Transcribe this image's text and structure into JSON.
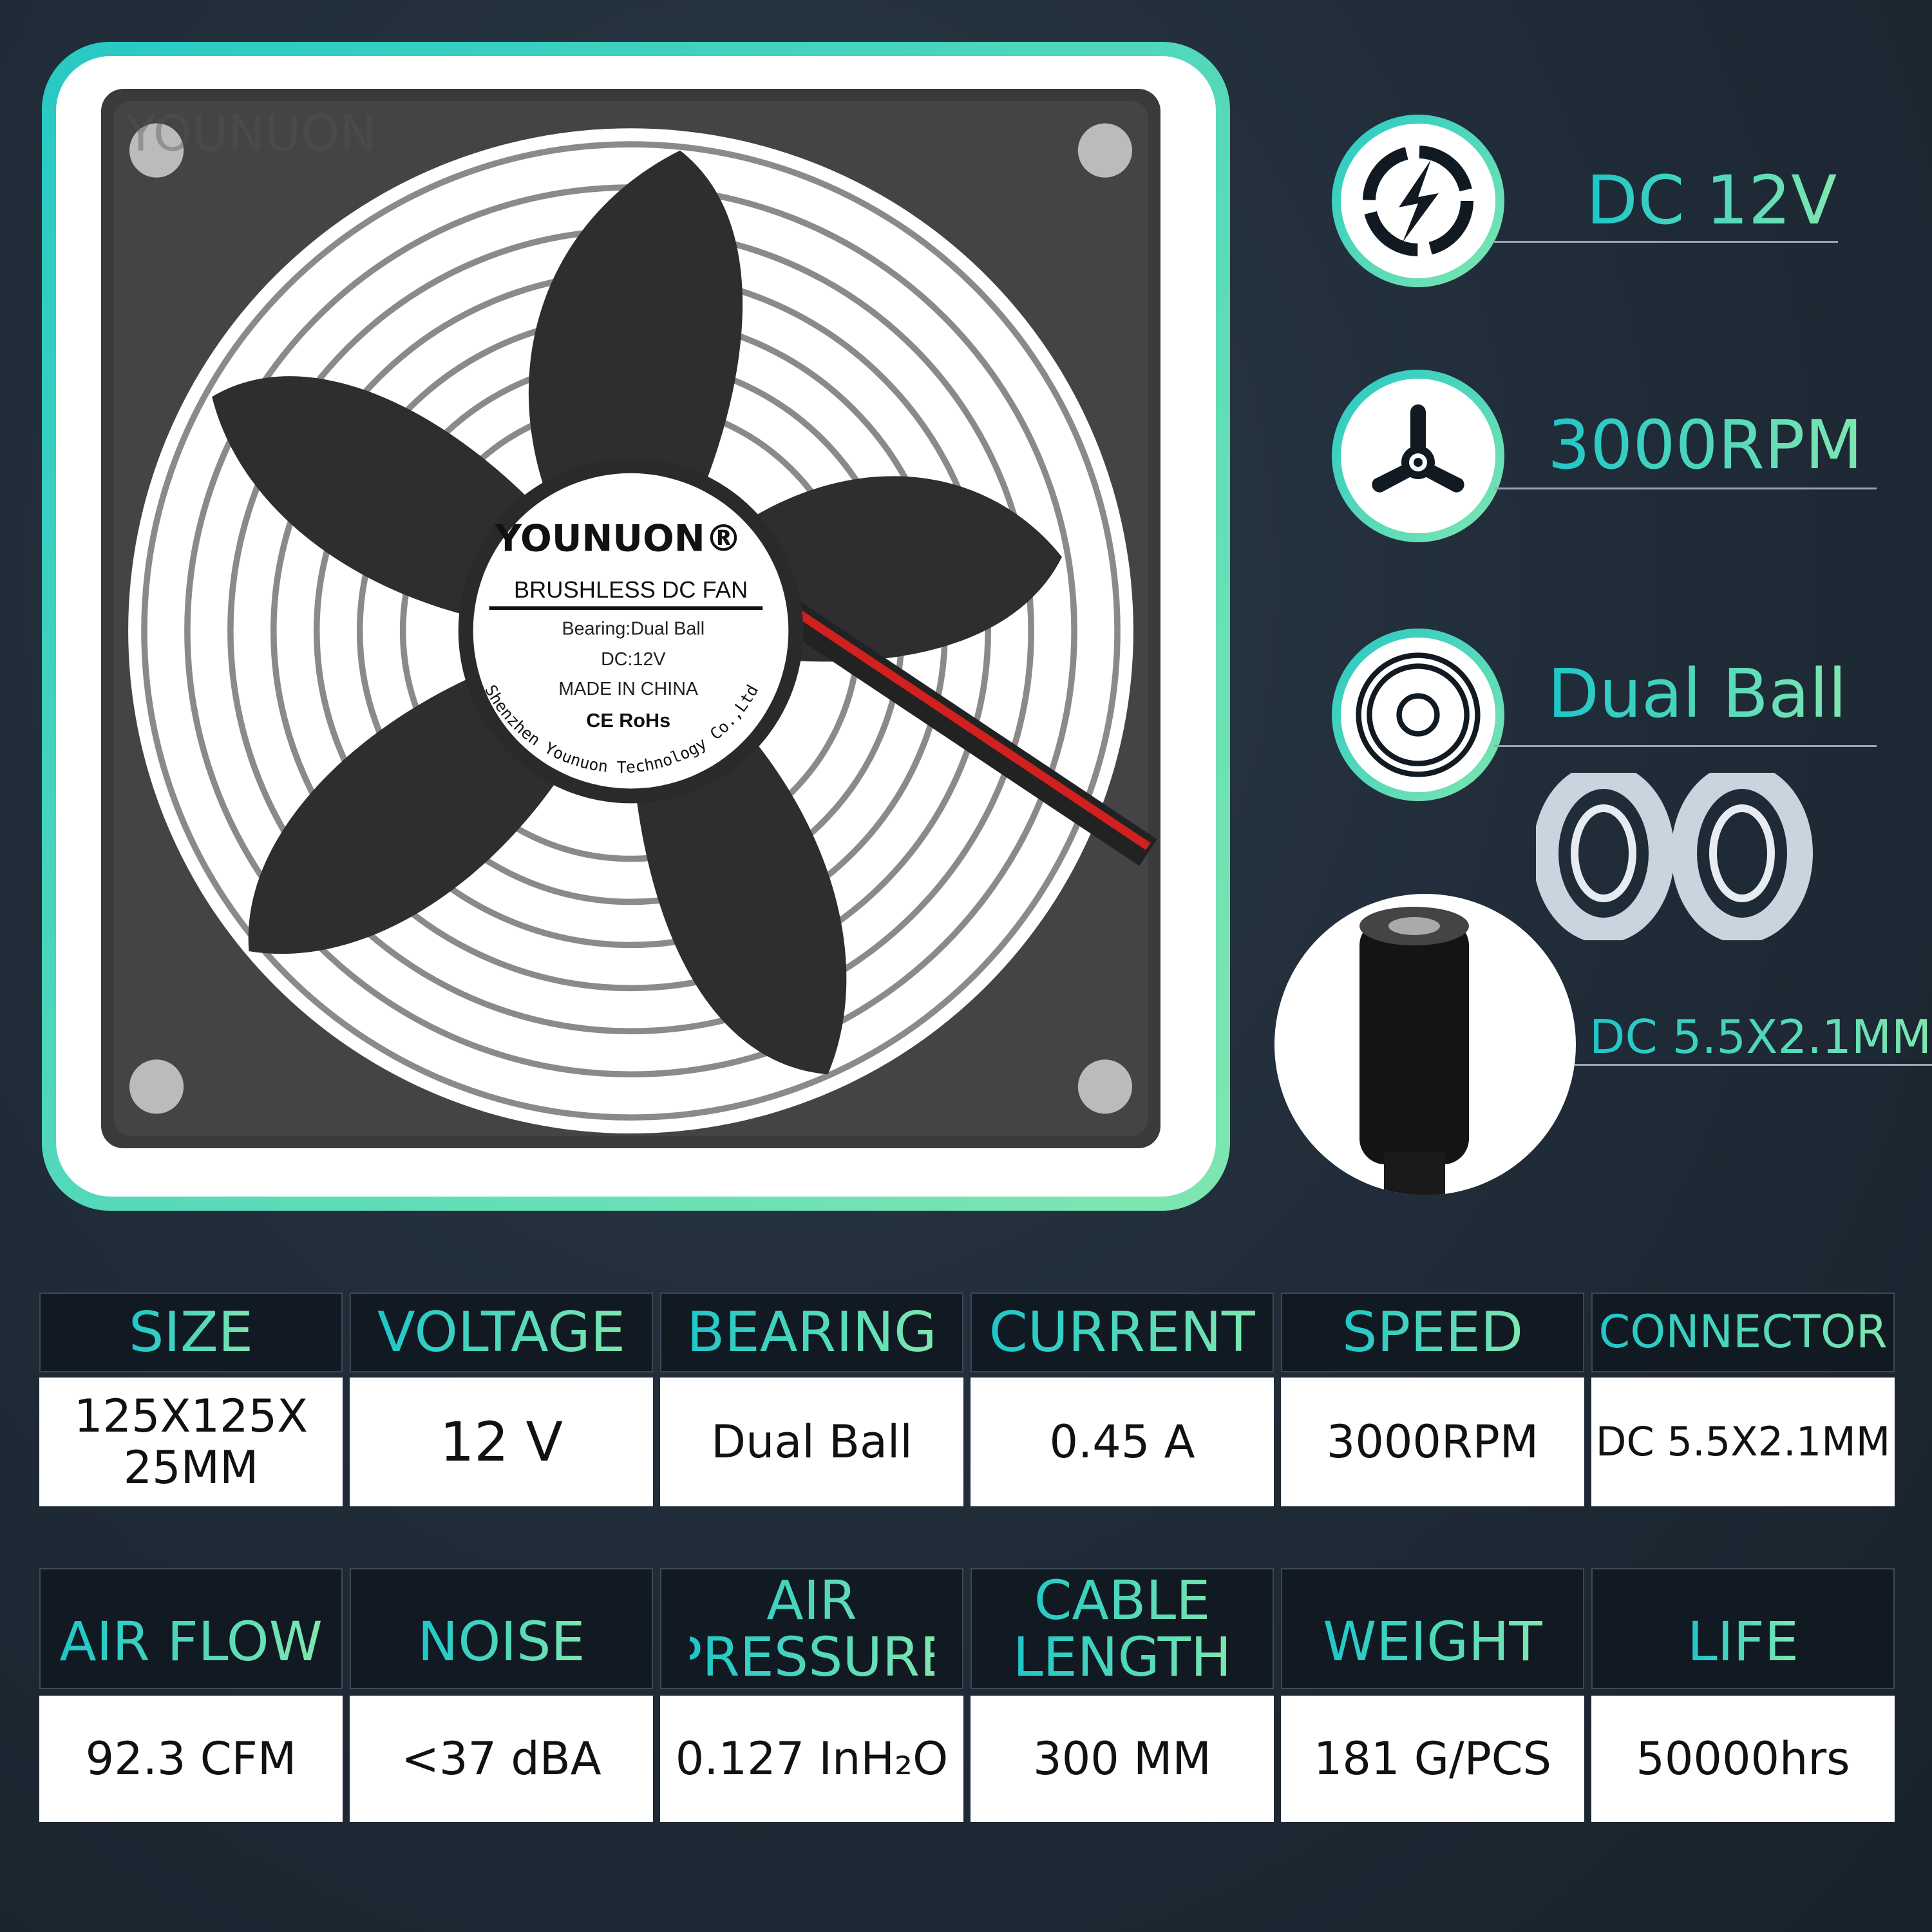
{
  "fan_label": {
    "brand": "YOUNUON®",
    "title": "BRUSHLESS DC FAN",
    "bearing": "Bearing:Dual Ball",
    "dc": "DC:12V",
    "origin": "MADE IN CHINA",
    "certs": "CE RoHs",
    "company": "Shenzhen Younuon Technology Co.,Ltd"
  },
  "watermark": "YOUNUON",
  "features": [
    {
      "icon": "lightning-bolt-icon",
      "label": "DC 12V"
    },
    {
      "icon": "fan-propeller-icon",
      "label": "3000RPM"
    },
    {
      "icon": "ball-bearing-icon",
      "label": "Dual Ball"
    },
    {
      "icon": "dc-connector-icon",
      "label": "DC 5.5X2.1MM"
    }
  ],
  "colors": {
    "accent_start": "#1ec6c8",
    "accent_end": "#7fe7b0",
    "background": "#1f2b37",
    "header_bg": "#111a22"
  },
  "specs_row1": [
    {
      "header": "SIZE",
      "value": "125X125X 25MM"
    },
    {
      "header": "VOLTAGE",
      "value": "12 V"
    },
    {
      "header": "BEARING",
      "value": "Dual Ball"
    },
    {
      "header": "CURRENT",
      "value": "0.45 A"
    },
    {
      "header": "SPEED",
      "value": "3000RPM"
    },
    {
      "header": "CONNECTOR",
      "value": "DC 5.5X2.1MM"
    }
  ],
  "specs_row2": [
    {
      "header": "AIR FLOW",
      "value": "92.3 CFM"
    },
    {
      "header": "NOISE",
      "value": "<37 dBA"
    },
    {
      "header": "AIR PRESSURE",
      "value": "0.127 InH₂O"
    },
    {
      "header": "CABLE LENGTH",
      "value": "300 MM"
    },
    {
      "header": "WEIGHT",
      "value": "181 G/PCS"
    },
    {
      "header": "LIFE",
      "value": "50000hrs"
    }
  ]
}
